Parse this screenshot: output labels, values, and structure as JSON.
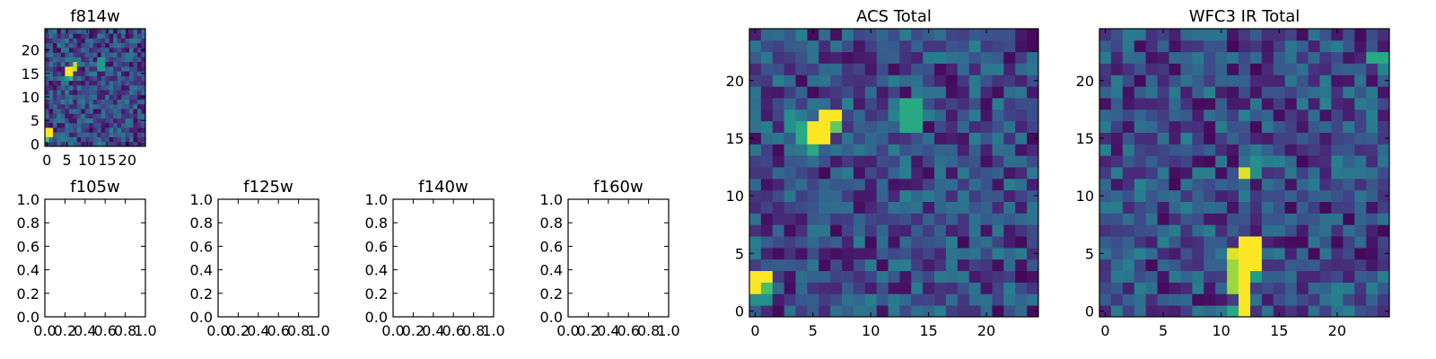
{
  "chart_data": [
    {
      "panel": "f814w",
      "type": "heatmap",
      "title": "f814w",
      "colormap": "viridis",
      "grid_size": [
        25,
        25
      ],
      "xlim": [
        -0.5,
        24.5
      ],
      "ylim": [
        -0.5,
        24.5
      ],
      "x_ticks": [
        "0",
        "5",
        "10",
        "15",
        "20"
      ],
      "y_ticks": [
        "0",
        "5",
        "10",
        "15",
        "20"
      ],
      "hot_spots": [
        {
          "x": [
            5,
            6
          ],
          "y": [
            15,
            16
          ],
          "value": 1.0
        },
        {
          "x": [
            7,
            7
          ],
          "y": [
            16,
            17
          ],
          "value": 0.9
        },
        {
          "x": [
            6,
            6
          ],
          "y": [
            14,
            14
          ],
          "value": 0.65
        },
        {
          "x": [
            5,
            5
          ],
          "y": [
            14,
            14
          ],
          "value": 0.55
        },
        {
          "x": [
            13,
            14
          ],
          "y": [
            16,
            18
          ],
          "value": 0.55
        },
        {
          "x": [
            0,
            1
          ],
          "y": [
            2,
            3
          ],
          "value": 1.0
        },
        {
          "x": [
            0,
            0
          ],
          "y": [
            1,
            1
          ],
          "value": 0.7
        }
      ]
    },
    {
      "panel": "f105w",
      "type": "empty",
      "title": "f105w",
      "xlim": [
        0,
        1
      ],
      "ylim": [
        0,
        1
      ],
      "x_ticks": [
        "0.0",
        "0.2",
        "0.4",
        "0.6",
        "0.8",
        "1.0"
      ],
      "y_ticks": [
        "0.0",
        "0.2",
        "0.4",
        "0.6",
        "0.8",
        "1.0"
      ]
    },
    {
      "panel": "f125w",
      "type": "empty",
      "title": "f125w",
      "xlim": [
        0,
        1
      ],
      "ylim": [
        0,
        1
      ],
      "x_ticks": [
        "0.0",
        "0.2",
        "0.4",
        "0.6",
        "0.8",
        "1.0"
      ],
      "y_ticks": [
        "0.0",
        "0.2",
        "0.4",
        "0.6",
        "0.8",
        "1.0"
      ]
    },
    {
      "panel": "f140w",
      "type": "empty",
      "title": "f140w",
      "xlim": [
        0,
        1
      ],
      "ylim": [
        0,
        1
      ],
      "x_ticks": [
        "0.0",
        "0.2",
        "0.4",
        "0.6",
        "0.8",
        "1.0"
      ],
      "y_ticks": [
        "0.0",
        "0.2",
        "0.4",
        "0.6",
        "0.8",
        "1.0"
      ]
    },
    {
      "panel": "f160w",
      "type": "empty",
      "title": "f160w",
      "xlim": [
        0,
        1
      ],
      "ylim": [
        0,
        1
      ],
      "x_ticks": [
        "0.0",
        "0.2",
        "0.4",
        "0.6",
        "0.8",
        "1.0"
      ],
      "y_ticks": [
        "0.0",
        "0.2",
        "0.4",
        "0.6",
        "0.8",
        "1.0"
      ]
    },
    {
      "panel": "acs",
      "type": "heatmap",
      "title": "ACS Total",
      "colormap": "viridis",
      "grid_size": [
        25,
        25
      ],
      "xlim": [
        -0.5,
        24.5
      ],
      "ylim": [
        -0.5,
        24.5
      ],
      "x_ticks": [
        "0",
        "5",
        "10",
        "15",
        "20"
      ],
      "y_ticks": [
        "0",
        "5",
        "10",
        "15",
        "20"
      ],
      "hot_spots": [
        {
          "x": [
            5,
            6
          ],
          "y": [
            15,
            16
          ],
          "value": 1.0
        },
        {
          "x": [
            6,
            7
          ],
          "y": [
            17,
            17
          ],
          "value": 1.0
        },
        {
          "x": [
            7,
            7
          ],
          "y": [
            16,
            16
          ],
          "value": 0.75
        },
        {
          "x": [
            4,
            4
          ],
          "y": [
            15,
            16
          ],
          "value": 0.6
        },
        {
          "x": [
            5,
            5
          ],
          "y": [
            14,
            14
          ],
          "value": 0.6
        },
        {
          "x": [
            3,
            3
          ],
          "y": [
            16,
            17
          ],
          "value": 0.5
        },
        {
          "x": [
            13,
            14
          ],
          "y": [
            16,
            18
          ],
          "value": 0.6
        },
        {
          "x": [
            12,
            12
          ],
          "y": [
            17,
            17
          ],
          "value": 0.45
        },
        {
          "x": [
            0,
            1
          ],
          "y": [
            3,
            3
          ],
          "value": 1.0
        },
        {
          "x": [
            0,
            0
          ],
          "y": [
            2,
            2
          ],
          "value": 1.0
        },
        {
          "x": [
            1,
            1
          ],
          "y": [
            2,
            2
          ],
          "value": 0.7
        },
        {
          "x": [
            0,
            1
          ],
          "y": [
            1,
            1
          ],
          "value": 0.5
        }
      ]
    },
    {
      "panel": "wfc3",
      "type": "heatmap",
      "title": "WFC3 IR Total",
      "colormap": "viridis",
      "grid_size": [
        25,
        25
      ],
      "xlim": [
        -0.5,
        24.5
      ],
      "ylim": [
        -0.5,
        24.5
      ],
      "x_ticks": [
        "0",
        "5",
        "10",
        "15",
        "20"
      ],
      "y_ticks": [
        "0",
        "5",
        "10",
        "15",
        "20"
      ],
      "hot_spots": [
        {
          "x": [
            12,
            13
          ],
          "y": [
            4,
            6
          ],
          "value": 1.0
        },
        {
          "x": [
            11,
            11
          ],
          "y": [
            5,
            5
          ],
          "value": 0.95
        },
        {
          "x": [
            11,
            11
          ],
          "y": [
            2,
            4
          ],
          "value": 0.85
        },
        {
          "x": [
            12,
            12
          ],
          "y": [
            2,
            3
          ],
          "value": 1.0
        },
        {
          "x": [
            13,
            13
          ],
          "y": [
            3,
            3
          ],
          "value": 0.55
        },
        {
          "x": [
            12,
            12
          ],
          "y": [
            -0.2,
            1
          ],
          "value": 1.0
        },
        {
          "x": [
            11,
            11
          ],
          "y": [
            0,
            0
          ],
          "value": 0.6
        },
        {
          "x": [
            12,
            12
          ],
          "y": [
            12,
            12
          ],
          "value": 0.95
        },
        {
          "x": [
            13,
            13
          ],
          "y": [
            12,
            13
          ],
          "value": 0.5
        },
        {
          "x": [
            23,
            24
          ],
          "y": [
            22,
            22
          ],
          "value": 0.6
        },
        {
          "x": [
            24,
            24
          ],
          "y": [
            21,
            21
          ],
          "value": 0.45
        }
      ]
    }
  ]
}
